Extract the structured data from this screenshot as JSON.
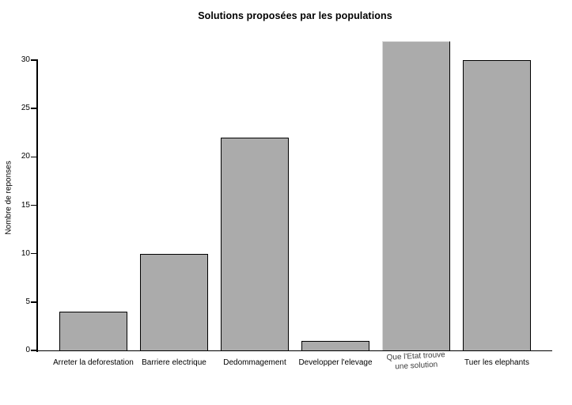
{
  "chart_data": {
    "type": "bar",
    "title": "Solutions proposées par les populations",
    "ylabel": "Nombre de reponses",
    "xlabel": "",
    "categories": [
      "Arreter la deforestation",
      "Barriere electrique",
      "Dedommagement",
      "Developper l'elevage",
      "Que l'Etat trouve\nune solution",
      "Tuer les elephants"
    ],
    "values": [
      4,
      10,
      22,
      1,
      32,
      30
    ],
    "yticks": [
      0,
      5,
      10,
      15,
      20,
      25,
      30
    ],
    "ylim": [
      0,
      32.5
    ],
    "grid": false,
    "legend": null,
    "colors": {
      "bar_fill": "#ababab",
      "bar_border": "#000000",
      "special_bar_border": "#d9d9d9",
      "axis": "#000000",
      "background": "#ffffff"
    },
    "special_bar_index": 4
  }
}
